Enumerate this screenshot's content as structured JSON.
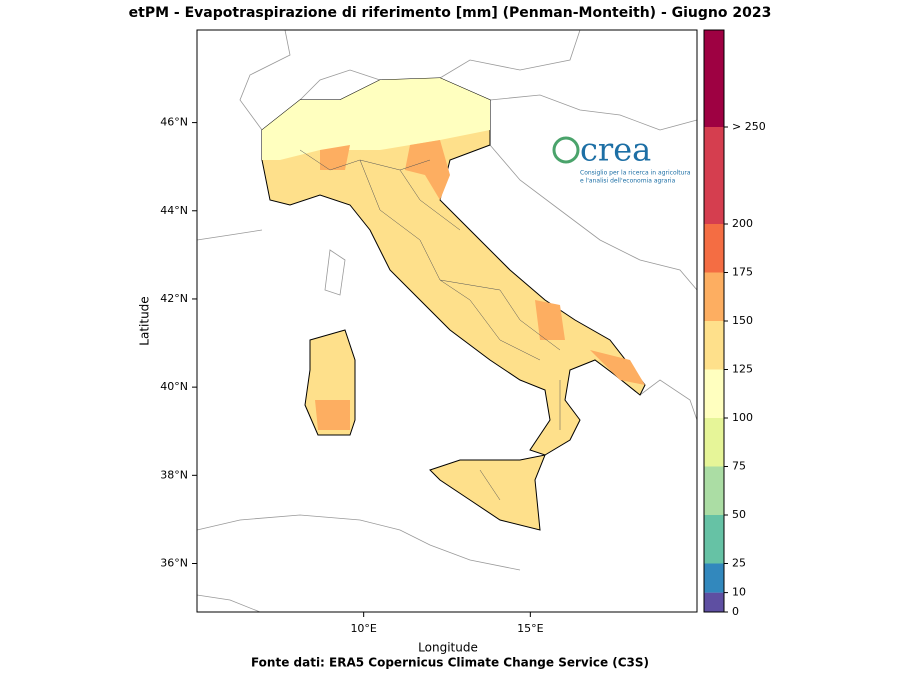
{
  "title": "etPM - Evapotraspirazione di riferimento [mm] (Penman-Monteith) - Giugno 2023",
  "source": "Fonte dati: ERA5 Copernicus Climate Change Service (C3S)",
  "logo": {
    "name": "crea",
    "subtitle_1": "Consiglio per la ricerca in agricoltura",
    "subtitle_2": "e l'analisi dell'economia agraria"
  },
  "map": {
    "x_label": "Longitude",
    "y_label": "Latitude",
    "xlim": [
      5,
      20
    ],
    "ylim": [
      34.9,
      48.1
    ],
    "xticks": [
      {
        "value": 10,
        "label": "10°E"
      },
      {
        "value": 15,
        "label": "15°E"
      }
    ],
    "yticks": [
      {
        "value": 36,
        "label": "36°N"
      },
      {
        "value": 38,
        "label": "38°N"
      },
      {
        "value": 40,
        "label": "40°N"
      },
      {
        "value": 42,
        "label": "42°N"
      },
      {
        "value": 44,
        "label": "44°N"
      },
      {
        "value": 46,
        "label": "46°N"
      }
    ]
  },
  "colorbar": {
    "lim": [
      0,
      300
    ],
    "boundaries": [
      0,
      10,
      25,
      50,
      75,
      100,
      125,
      150,
      175,
      200,
      250,
      300
    ],
    "colors": [
      "#5e4fa2",
      "#3288bd",
      "#66c2a5",
      "#abdda4",
      "#e6f598",
      "#ffffbf",
      "#fee08b",
      "#fdae61",
      "#f46d43",
      "#d53e4f",
      "#9e0142"
    ],
    "ticks": [
      0,
      10,
      25,
      50,
      75,
      100,
      125,
      150,
      175,
      200,
      {
        "value": 250,
        "label": "> 250"
      }
    ]
  }
}
